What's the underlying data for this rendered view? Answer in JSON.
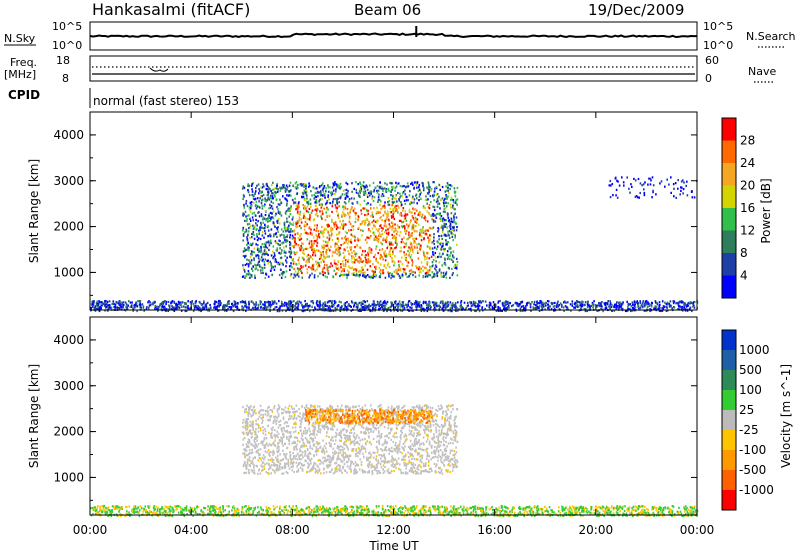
{
  "header": {
    "station": "Hankasalmi (fitACF)",
    "beam": "Beam 06",
    "date": "19/Dec/2009"
  },
  "noise_panel": {
    "left_label": "N.Sky",
    "left_ticks": [
      "10^5",
      "10^0"
    ],
    "right_ticks": [
      "10^5",
      "10^0"
    ],
    "right_label": "N.Search"
  },
  "freq_panel": {
    "left_label_1": "Freq.",
    "left_label_2": "[MHz]",
    "left_ticks": [
      "18",
      "8"
    ],
    "right_ticks": [
      "60",
      "0"
    ],
    "right_label": "Nave",
    "cpid_label": "CPID",
    "cpid_text": "normal (fast stereo) 153"
  },
  "colors": {
    "power_scale": [
      "#0000ff",
      "#1f3fa8",
      "#2e7d5b",
      "#2fbf4a",
      "#d4d400",
      "#f5a623",
      "#ff6a00",
      "#ff0000"
    ],
    "velocity_scale": [
      "#ff0000",
      "#ff6000",
      "#ff9900",
      "#ffc400",
      "#bbbbbb",
      "#33cc33",
      "#2e8b57",
      "#1f5fa8",
      "#0033cc"
    ],
    "ground_scatter": "#c0c0c0"
  },
  "chart_data": [
    {
      "type": "heatmap",
      "ylabel": "Slant Range [km]",
      "xlim": [
        "00:00",
        "24:00"
      ],
      "ylim": [
        180,
        4500
      ],
      "yticks": [
        "1000",
        "2000",
        "3000",
        "4000"
      ],
      "colorbar": {
        "label": "Power [dB]",
        "ticks": [
          "4",
          "8",
          "12",
          "16",
          "20",
          "24",
          "28"
        ],
        "range": [
          0,
          30
        ]
      },
      "echo_regions": [
        {
          "start": 6.0,
          "end": 14.5,
          "range_min": 900,
          "range_max": 3000,
          "peak_db": 30
        },
        {
          "start": 0.0,
          "end": 24.0,
          "range_min": 180,
          "range_max": 400,
          "peak_db": 10
        },
        {
          "start": 20.5,
          "end": 24.0,
          "range_min": 2650,
          "range_max": 3100,
          "peak_db": 6
        }
      ]
    },
    {
      "type": "heatmap",
      "ylabel": "Slant Range [km]",
      "xlabel": "Time UT",
      "xlim": [
        "00:00",
        "24:00"
      ],
      "ylim": [
        180,
        4500
      ],
      "yticks": [
        "1000",
        "2000",
        "3000",
        "4000"
      ],
      "xticks": [
        "00:00",
        "04:00",
        "08:00",
        "12:00",
        "16:00",
        "20:00",
        "00:00"
      ],
      "colorbar": {
        "label": "Velocity [m s^-1]",
        "ticks": [
          "1000",
          "500",
          "100",
          "25",
          "-25",
          "-100",
          "-500",
          "-1000"
        ]
      },
      "echo_regions": [
        {
          "start": 6.0,
          "end": 14.5,
          "range_min": 1100,
          "range_max": 2600,
          "velocity": 0
        },
        {
          "start": 8.5,
          "end": 13.5,
          "range_min": 2200,
          "range_max": 2500,
          "velocity": -100
        },
        {
          "start": 0.0,
          "end": 24.0,
          "range_min": 180,
          "range_max": 400,
          "velocity": 30
        }
      ]
    }
  ]
}
